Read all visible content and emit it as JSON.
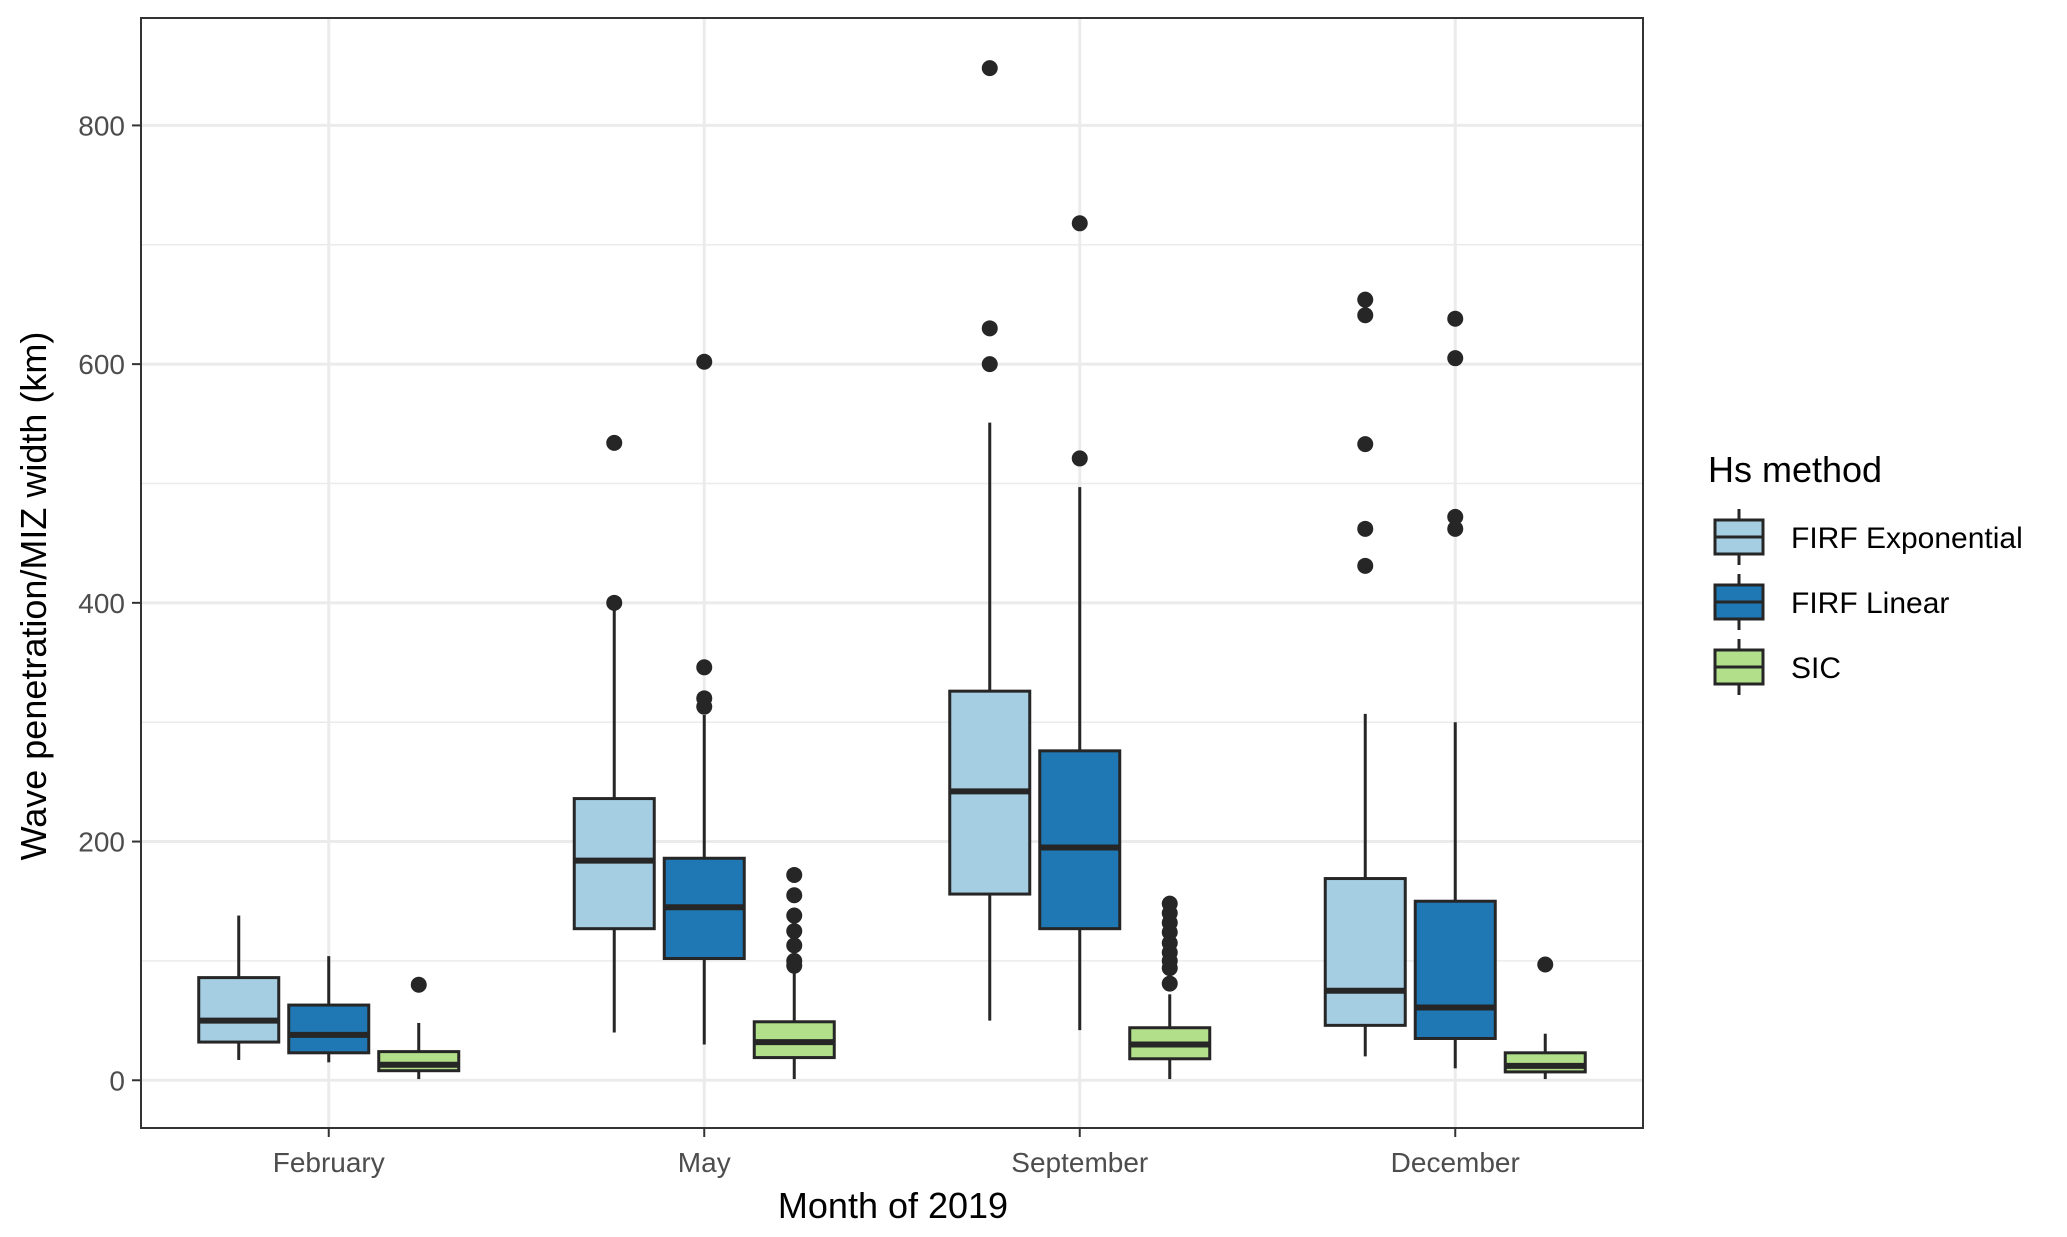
{
  "chart_data": {
    "type": "boxplot",
    "title": "",
    "xlabel": "Month of 2019",
    "ylabel": "Wave penetration/MIZ width (km)",
    "ylim": [
      -40,
      890
    ],
    "yticks": [
      0,
      200,
      400,
      600,
      800
    ],
    "ytick_labels": [
      "0",
      "200",
      "400",
      "600",
      "800"
    ],
    "grid": true,
    "categories": [
      "February",
      "May",
      "September",
      "December"
    ],
    "legend": {
      "title": "Hs method",
      "position": "right",
      "entries": [
        "FIRF Exponential",
        "FIRF Linear",
        "SIC"
      ]
    },
    "colors": {
      "FIRF Exponential": "#a6cee3",
      "FIRF Linear": "#1f78b4",
      "SIC": "#b2df8a",
      "outline": "#262626",
      "grid": "#ebebeb"
    },
    "series": [
      {
        "name": "FIRF Exponential",
        "boxes": [
          {
            "category": "February",
            "whisker_low": 17,
            "q1": 32,
            "median": 50,
            "q3": 86,
            "whisker_high": 138,
            "outliers": []
          },
          {
            "category": "May",
            "whisker_low": 40,
            "q1": 127,
            "median": 184,
            "q3": 236,
            "whisker_high": 400,
            "outliers": [
              400,
              534
            ]
          },
          {
            "category": "September",
            "whisker_low": 50,
            "q1": 156,
            "median": 242,
            "q3": 326,
            "whisker_high": 551,
            "outliers": [
              600,
              630,
              848
            ]
          },
          {
            "category": "December",
            "whisker_low": 20,
            "q1": 46,
            "median": 75,
            "q3": 169,
            "whisker_high": 307,
            "outliers": [
              431,
              462,
              533,
              641,
              654
            ]
          }
        ]
      },
      {
        "name": "FIRF Linear",
        "boxes": [
          {
            "category": "February",
            "whisker_low": 15,
            "q1": 23,
            "median": 38,
            "q3": 63,
            "whisker_high": 104,
            "outliers": []
          },
          {
            "category": "May",
            "whisker_low": 30,
            "q1": 102,
            "median": 145,
            "q3": 186,
            "whisker_high": 306,
            "outliers": [
              313,
              320,
              346,
              602
            ]
          },
          {
            "category": "September",
            "whisker_low": 42,
            "q1": 127,
            "median": 195,
            "q3": 276,
            "whisker_high": 497,
            "outliers": [
              521,
              718
            ]
          },
          {
            "category": "December",
            "whisker_low": 10,
            "q1": 35,
            "median": 61,
            "q3": 150,
            "whisker_high": 300,
            "outliers": [
              462,
              472,
              605,
              638
            ]
          }
        ]
      },
      {
        "name": "SIC",
        "boxes": [
          {
            "category": "February",
            "whisker_low": 1,
            "q1": 8,
            "median": 13,
            "q3": 24,
            "whisker_high": 48,
            "outliers": [
              80
            ]
          },
          {
            "category": "May",
            "whisker_low": 1,
            "q1": 19,
            "median": 32,
            "q3": 49,
            "whisker_high": 90,
            "outliers": [
              96,
              100,
              113,
              125,
              138,
              155,
              172
            ]
          },
          {
            "category": "September",
            "whisker_low": 1,
            "q1": 18,
            "median": 30,
            "q3": 44,
            "whisker_high": 72,
            "outliers": [
              81,
              94,
              100,
              107,
              115,
              124,
              132,
              140,
              148
            ]
          },
          {
            "category": "December",
            "whisker_low": 1,
            "q1": 7,
            "median": 12,
            "q3": 23,
            "whisker_high": 39,
            "outliers": [
              97
            ]
          }
        ]
      }
    ]
  }
}
